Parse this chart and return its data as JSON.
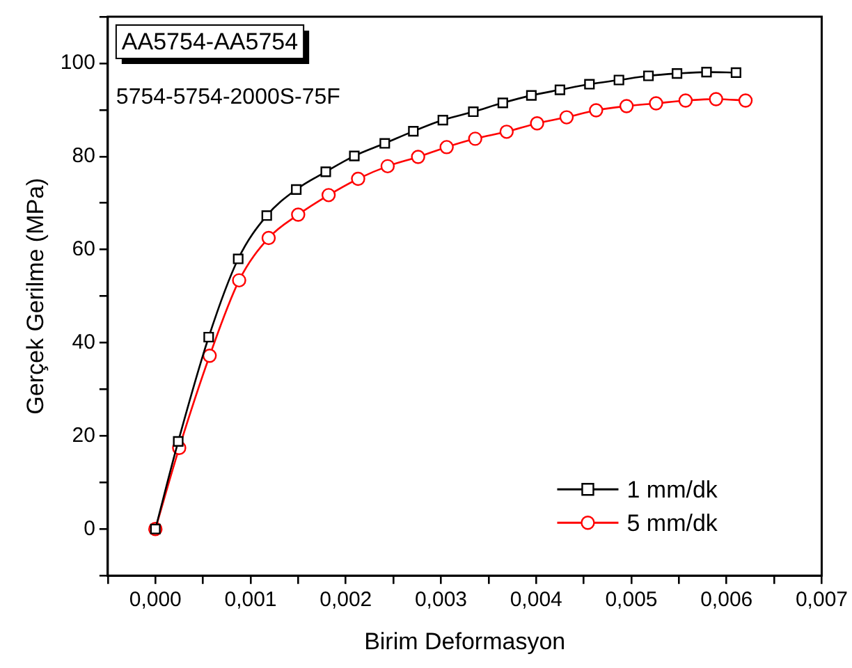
{
  "chart_data": {
    "type": "line",
    "title": "AA5754-AA5754",
    "subtitle": "5754-5754-2000S-75F",
    "xlabel": "Birim Deformasyon",
    "ylabel": "Gerçek Gerilme (MPa)",
    "xlim": [
      -0.0005,
      0.007
    ],
    "ylim": [
      -10,
      110
    ],
    "xticks": [
      {
        "value": -0.0005,
        "label": null
      },
      {
        "value": 0,
        "label": "0,000"
      },
      {
        "value": 0.0005,
        "label": null
      },
      {
        "value": 0.001,
        "label": "0,001"
      },
      {
        "value": 0.0015,
        "label": null
      },
      {
        "value": 0.002,
        "label": "0,002"
      },
      {
        "value": 0.0025,
        "label": null
      },
      {
        "value": 0.003,
        "label": "0,003"
      },
      {
        "value": 0.0035,
        "label": null
      },
      {
        "value": 0.004,
        "label": "0,004"
      },
      {
        "value": 0.0045,
        "label": null
      },
      {
        "value": 0.005,
        "label": "0,005"
      },
      {
        "value": 0.0055,
        "label": null
      },
      {
        "value": 0.006,
        "label": "0,006"
      },
      {
        "value": 0.0065,
        "label": null
      },
      {
        "value": 0.007,
        "label": "0,007"
      }
    ],
    "yticks": [
      {
        "value": -10,
        "label": null
      },
      0,
      {
        "value": 10,
        "label": null
      },
      20,
      {
        "value": 30,
        "label": null
      },
      40,
      {
        "value": 50,
        "label": null
      },
      60,
      {
        "value": 70,
        "label": null
      },
      80,
      {
        "value": 90,
        "label": null
      },
      100,
      {
        "value": 110,
        "label": null
      }
    ],
    "grid": false,
    "legend": "bottom right",
    "line_style": "solid",
    "series": [
      {
        "name": "1 mm/dk",
        "color": "#000000",
        "marker": "square",
        "x": [
          0,
          0.00024,
          0.00056,
          0.00087,
          0.00117,
          0.00148,
          0.00179,
          0.00209,
          0.00241,
          0.00271,
          0.00302,
          0.00334,
          0.00365,
          0.00395,
          0.00425,
          0.00456,
          0.00487,
          0.00518,
          0.00548,
          0.00579,
          0.0061
        ],
        "values": [
          0,
          18.8,
          41.2,
          58,
          67.3,
          72.9,
          76.7,
          80.1,
          82.8,
          85.4,
          87.8,
          89.6,
          91.5,
          93.1,
          94.3,
          95.5,
          96.4,
          97.3,
          97.8,
          98.1,
          98
        ]
      },
      {
        "name": "5 mm/dk",
        "color": "#ff0000",
        "marker": "circle",
        "x": [
          0,
          0.00025,
          0.00057,
          0.00088,
          0.00119,
          0.0015,
          0.00182,
          0.00213,
          0.00244,
          0.00276,
          0.00306,
          0.00336,
          0.00369,
          0.00401,
          0.00432,
          0.00463,
          0.00495,
          0.00526,
          0.00557,
          0.00589,
          0.0062
        ],
        "values": [
          0,
          17.4,
          37.2,
          53.4,
          62.5,
          67.5,
          71.7,
          75.2,
          77.9,
          79.9,
          82,
          83.8,
          85.3,
          87.1,
          88.4,
          89.9,
          90.8,
          91.4,
          92,
          92.3,
          92
        ]
      }
    ]
  }
}
